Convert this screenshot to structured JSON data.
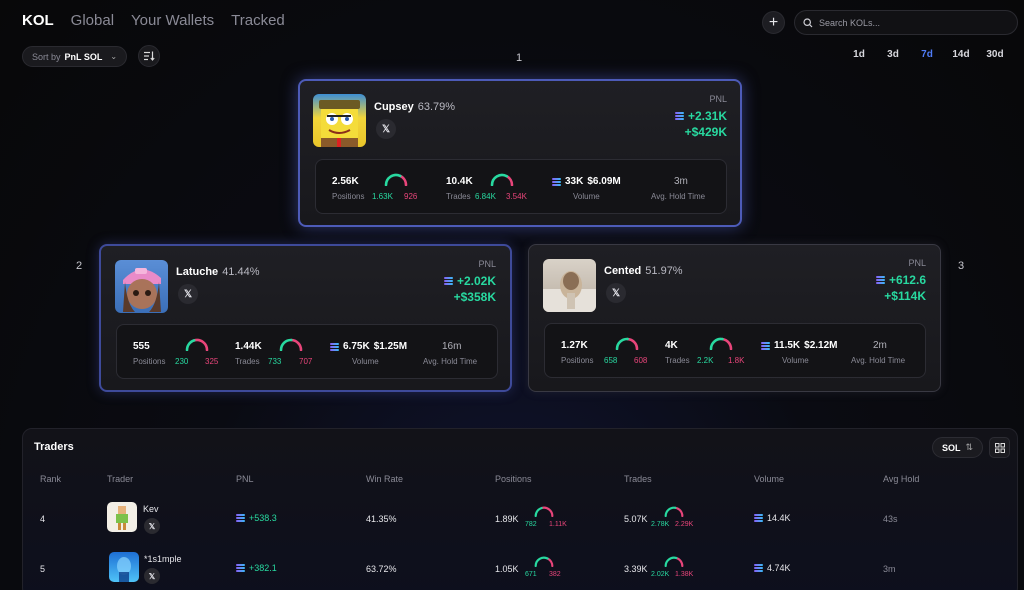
{
  "nav": {
    "tabs": [
      {
        "label": "KOL",
        "active": true
      },
      {
        "label": "Global",
        "active": false
      },
      {
        "label": "Your Wallets",
        "active": false
      },
      {
        "label": "Tracked",
        "active": false
      }
    ],
    "add_label": "+",
    "search_placeholder": "Search KOLs..."
  },
  "sort": {
    "prefix": "Sort by",
    "value": "PnL SOL"
  },
  "periods": [
    {
      "label": "1d",
      "active": false
    },
    {
      "label": "3d",
      "active": false
    },
    {
      "label": "7d",
      "active": true
    },
    {
      "label": "14d",
      "active": false
    },
    {
      "label": "30d",
      "active": false
    }
  ],
  "podium": [
    {
      "rank": "1",
      "name": "Cupsey",
      "win_rate": "63.79%",
      "x_label": "𝕏",
      "pnl_label": "PNL",
      "pnl_sol": "+2.31K",
      "pnl_usd": "+$429K",
      "positions": "2.56K",
      "positions_label": "Positions",
      "positions_win": "1.63K",
      "positions_loss": "926",
      "trades": "10.4K",
      "trades_label": "Trades",
      "trades_win": "6.84K",
      "trades_loss": "3.54K",
      "volume_sol": "33K",
      "volume_usd": "$6.09M",
      "volume_label": "Volume",
      "hold": "3m",
      "hold_label": "Avg. Hold Time",
      "positions_ratio": 0.64,
      "trades_ratio": 0.66
    },
    {
      "rank": "2",
      "name": "Latuche",
      "win_rate": "41.44%",
      "x_label": "𝕏",
      "pnl_label": "PNL",
      "pnl_sol": "+2.02K",
      "pnl_usd": "+$358K",
      "positions": "555",
      "positions_label": "Positions",
      "positions_win": "230",
      "positions_loss": "325",
      "trades": "1.44K",
      "trades_label": "Trades",
      "trades_win": "733",
      "trades_loss": "707",
      "volume_sol": "6.75K",
      "volume_usd": "$1.25M",
      "volume_label": "Volume",
      "hold": "16m",
      "hold_label": "Avg. Hold Time",
      "positions_ratio": 0.41,
      "trades_ratio": 0.51
    },
    {
      "rank": "3",
      "name": "Cented",
      "win_rate": "51.97%",
      "x_label": "𝕏",
      "pnl_label": "PNL",
      "pnl_sol": "+612.6",
      "pnl_usd": "+$114K",
      "positions": "1.27K",
      "positions_label": "Positions",
      "positions_win": "658",
      "positions_loss": "608",
      "trades": "4K",
      "trades_label": "Trades",
      "trades_win": "2.2K",
      "trades_loss": "1.8K",
      "volume_sol": "11.5K",
      "volume_usd": "$2.12M",
      "volume_label": "Volume",
      "hold": "2m",
      "hold_label": "Avg. Hold Time",
      "positions_ratio": 0.52,
      "trades_ratio": 0.55
    }
  ],
  "traders": {
    "title": "Traders",
    "currency_btn": "SOL",
    "columns": [
      "Rank",
      "Trader",
      "PNL",
      "Win Rate",
      "Positions",
      "Trades",
      "Volume",
      "Avg Hold"
    ],
    "rows": [
      {
        "rank": "4",
        "name": "Kev",
        "x_label": "𝕏",
        "pnl": "+538.3",
        "win_rate": "41.35%",
        "positions": "1.89K",
        "positions_win": "782",
        "positions_loss": "1.11K",
        "trades": "5.07K",
        "trades_win": "2.78K",
        "trades_loss": "2.29K",
        "volume": "14.4K",
        "hold": "43s",
        "positions_ratio": 0.41,
        "trades_ratio": 0.55
      },
      {
        "rank": "5",
        "name": "*1s1mple",
        "x_label": "𝕏",
        "pnl": "+382.1",
        "win_rate": "63.72%",
        "positions": "1.05K",
        "positions_win": "671",
        "positions_loss": "382",
        "trades": "3.39K",
        "trades_win": "2.02K",
        "trades_loss": "1.38K",
        "volume": "4.74K",
        "hold": "3m",
        "positions_ratio": 0.64,
        "trades_ratio": 0.59
      }
    ]
  },
  "colors": {
    "accent": "#4f7cf7",
    "profit": "#28d9a0",
    "loss": "#e8457a"
  }
}
